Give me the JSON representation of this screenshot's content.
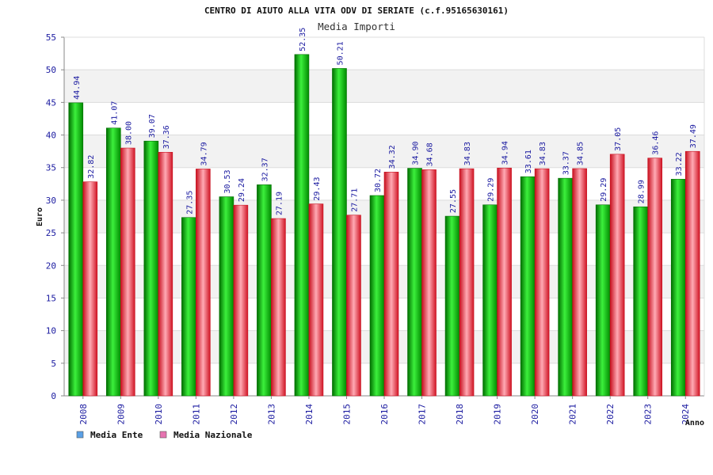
{
  "chart_data": {
    "type": "bar",
    "title": "CENTRO DI AIUTO ALLA VITA ODV DI SERIATE (c.f.95165630161)",
    "subtitle": "Media Importi",
    "ylabel": "Euro",
    "xlabel": "Anno",
    "ylim": [
      0,
      55
    ],
    "yticks": [
      0,
      5,
      10,
      15,
      20,
      25,
      30,
      35,
      40,
      45,
      50,
      55
    ],
    "categories": [
      "2008",
      "2009",
      "2010",
      "2011",
      "2012",
      "2013",
      "2014",
      "2015",
      "2016",
      "2017",
      "2018",
      "2019",
      "2020",
      "2021",
      "2022",
      "2023",
      "2024"
    ],
    "series": [
      {
        "name": "Media Ente",
        "values": [
          44.94,
          41.07,
          39.07,
          27.35,
          30.53,
          32.37,
          52.35,
          50.21,
          30.72,
          34.9,
          27.55,
          29.29,
          33.61,
          33.37,
          29.29,
          28.99,
          33.22
        ],
        "labels": [
          "44.94",
          "41.07",
          "39.07",
          "27.35",
          "30.53",
          "32.37",
          "52.35",
          "50.21",
          "30.72",
          "34.90",
          "27.55",
          "29.29",
          "33.61",
          "33.37",
          "29.29",
          "28.99",
          "33.22"
        ]
      },
      {
        "name": "Media Nazionale",
        "values": [
          32.82,
          38.0,
          37.36,
          34.79,
          29.24,
          27.19,
          29.43,
          27.71,
          34.32,
          34.68,
          34.83,
          34.94,
          34.83,
          34.85,
          37.05,
          36.46,
          37.49
        ],
        "labels": [
          "32.82",
          "38.00",
          "37.36",
          "34.79",
          "29.24",
          "27.19",
          "29.43",
          "27.71",
          "34.32",
          "34.68",
          "34.83",
          "34.94",
          "34.83",
          "34.85",
          "37.05",
          "36.46",
          "37.49"
        ]
      }
    ],
    "legend": [
      {
        "label": "Media Ente",
        "color": "#5aa0e6"
      },
      {
        "label": "Media Nazionale",
        "color": "#e673b0"
      }
    ],
    "grid": true,
    "legend_position": "bottom-left",
    "colors": {
      "ente_dark": "#006e00",
      "ente_light": "#3cf03c",
      "naz_dark": "#c80f1e",
      "naz_light": "#ffaab4",
      "band": "#f2f2f2"
    }
  }
}
